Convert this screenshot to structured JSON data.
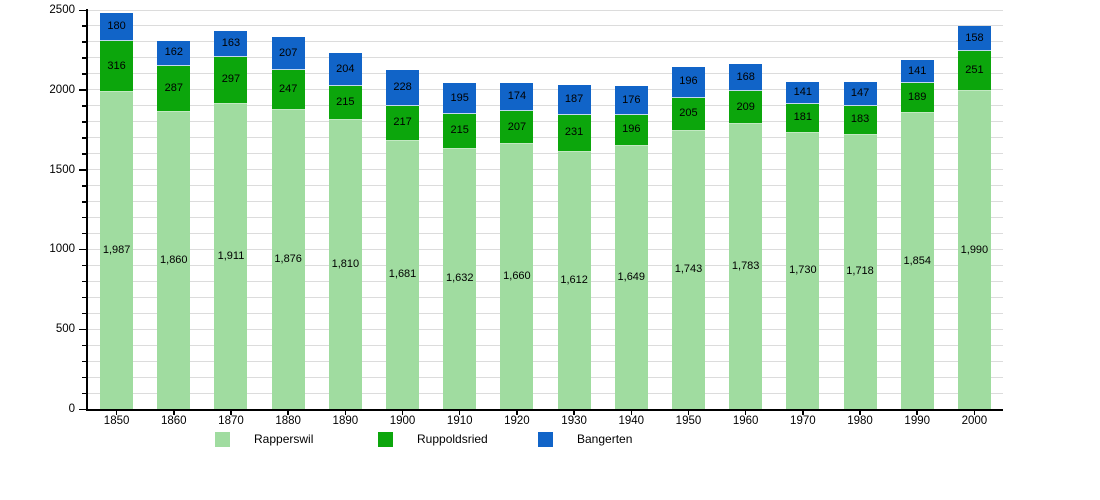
{
  "chart_data": {
    "type": "bar",
    "stacked": true,
    "title": "",
    "xlabel": "",
    "ylabel": "",
    "categories": [
      "1850",
      "1860",
      "1870",
      "1880",
      "1890",
      "1900",
      "1910",
      "1920",
      "1930",
      "1940",
      "1950",
      "1960",
      "1970",
      "1980",
      "1990",
      "2000"
    ],
    "series": [
      {
        "name": "Rapperswil",
        "color": "#a0dca0",
        "values": [
          1987,
          1860,
          1911,
          1876,
          1810,
          1681,
          1632,
          1660,
          1612,
          1649,
          1743,
          1783,
          1730,
          1718,
          1854,
          1990
        ]
      },
      {
        "name": "Ruppoldsried",
        "color": "#0ca60c",
        "values": [
          316,
          287,
          297,
          247,
          215,
          217,
          215,
          207,
          231,
          196,
          205,
          209,
          181,
          183,
          189,
          251
        ]
      },
      {
        "name": "Bangerten",
        "color": "#1164c8",
        "values": [
          180,
          162,
          163,
          207,
          204,
          228,
          195,
          174,
          187,
          176,
          196,
          168,
          141,
          147,
          141,
          158
        ]
      }
    ],
    "ylim": [
      0,
      2500
    ],
    "ytick_major": 500,
    "ytick_minor": 100,
    "grid": true,
    "legend_position": "bottom",
    "legend_entries": [
      "Rapperswil",
      "Ruppoldsried",
      "Bangerten"
    ]
  },
  "colors": {
    "background": "#ffffff",
    "gridline": "#dcdcdc",
    "axis": "#000000",
    "label_text": "#000000"
  }
}
